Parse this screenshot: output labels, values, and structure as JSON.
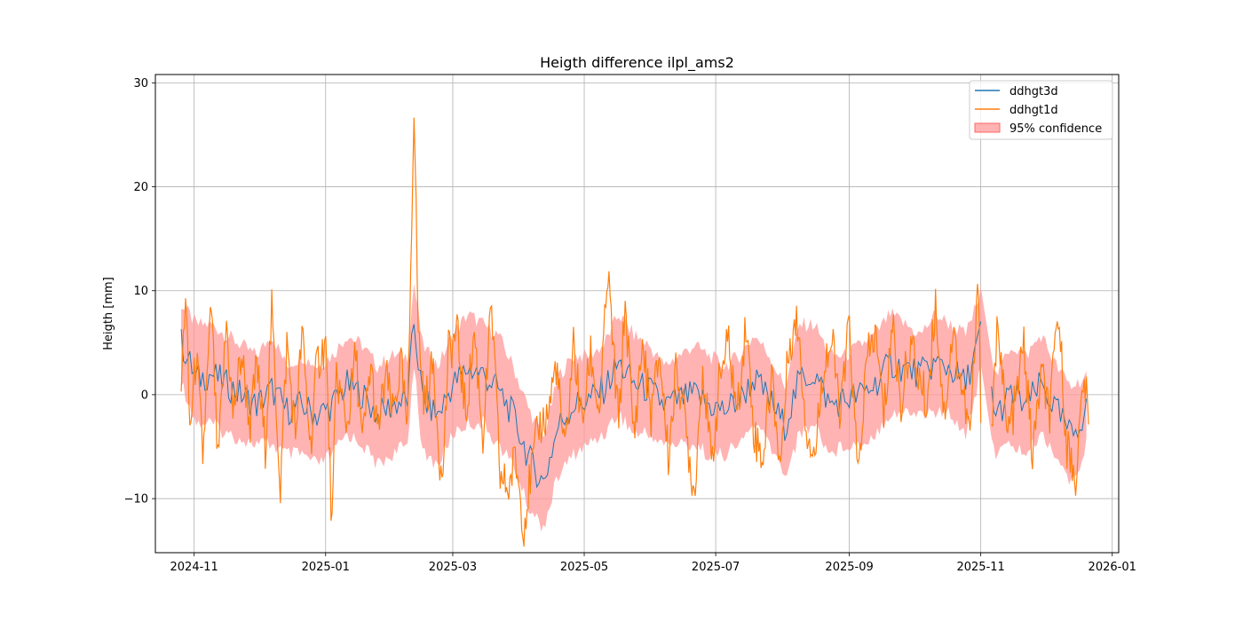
{
  "chart_data": {
    "type": "line",
    "title": "Heigth difference ilpl_ams2",
    "xlabel": "",
    "ylabel": "Heigth [mm]",
    "x_range": [
      "2024-10-14",
      "2026-01-04"
    ],
    "ylim": [
      -15.2,
      30.8
    ],
    "grid": true,
    "legend_position": "top-right",
    "x_ticks": [
      "2024-11",
      "2025-01",
      "2025-03",
      "2025-05",
      "2025-07",
      "2025-09",
      "2025-11",
      "2026-01"
    ],
    "y_ticks": [
      -10,
      0,
      10,
      20,
      30
    ],
    "colors": {
      "ddhgt3d": "#1f77b4",
      "ddhgt1d": "#ff7f0e",
      "confidence": "#ff9999"
    },
    "series": [
      {
        "name": "ddhgt3d",
        "x": [
          "2024-10-26",
          "2024-11-02",
          "2024-11-09",
          "2024-11-16",
          "2024-11-23",
          "2024-11-30",
          "2024-12-07",
          "2024-12-14",
          "2024-12-21",
          "2024-12-28",
          "2025-01-04",
          "2025-01-11",
          "2025-01-18",
          "2025-01-25",
          "2025-02-01",
          "2025-02-08",
          "2025-02-11",
          "2025-02-15",
          "2025-02-22",
          "2025-03-01",
          "2025-03-08",
          "2025-03-15",
          "2025-03-22",
          "2025-03-29",
          "2025-04-05",
          "2025-04-12",
          "2025-04-19",
          "2025-04-26",
          "2025-05-03",
          "2025-05-10",
          "2025-05-17",
          "2025-05-24",
          "2025-05-31",
          "2025-06-07",
          "2025-06-14",
          "2025-06-21",
          "2025-06-28",
          "2025-07-05",
          "2025-07-12",
          "2025-07-19",
          "2025-07-26",
          "2025-08-02",
          "2025-08-09",
          "2025-08-16",
          "2025-08-23",
          "2025-08-30",
          "2025-09-06",
          "2025-09-13",
          "2025-09-20",
          "2025-09-27",
          "2025-10-04",
          "2025-10-11",
          "2025-10-18",
          "2025-10-25",
          "2025-11-01",
          "2025-11-08",
          "2025-11-15",
          "2025-11-22",
          "2025-11-29",
          "2025-12-06",
          "2025-12-13",
          "2025-12-20"
        ],
        "y": [
          5,
          1.5,
          2,
          1,
          0,
          -1,
          0.5,
          -1.5,
          -1,
          -2,
          -1,
          1,
          0,
          -2,
          -1,
          -0.5,
          7,
          -0.5,
          -2,
          1,
          2.5,
          2,
          0.5,
          -2,
          -6,
          -8.5,
          -3,
          -1,
          -0.5,
          0.5,
          3,
          1,
          0.5,
          -1,
          -0.5,
          0,
          -1,
          -1.5,
          -0.5,
          1.5,
          -0.5,
          -3,
          1.5,
          2,
          -1,
          -0.5,
          0,
          1,
          3,
          2.5,
          2,
          3,
          2.5,
          1,
          6,
          -2,
          0,
          -1,
          1,
          -1.5,
          -4,
          -1.5
        ]
      },
      {
        "name": "ddhgt1d",
        "x": [
          "2024-10-26",
          "2024-10-28",
          "2024-10-30",
          "2024-11-02",
          "2024-11-05",
          "2024-11-09",
          "2024-11-12",
          "2024-11-16",
          "2024-11-19",
          "2024-11-23",
          "2024-11-27",
          "2024-11-30",
          "2024-12-04",
          "2024-12-07",
          "2024-12-11",
          "2024-12-14",
          "2024-12-18",
          "2024-12-21",
          "2024-12-25",
          "2024-12-28",
          "2025-01-01",
          "2025-01-04",
          "2025-01-06",
          "2025-01-11",
          "2025-01-15",
          "2025-01-18",
          "2025-01-22",
          "2025-01-25",
          "2025-01-29",
          "2025-02-01",
          "2025-02-05",
          "2025-02-08",
          "2025-02-11",
          "2025-02-13",
          "2025-02-16",
          "2025-02-20",
          "2025-02-24",
          "2025-02-27",
          "2025-03-03",
          "2025-03-07",
          "2025-03-11",
          "2025-03-15",
          "2025-03-19",
          "2025-03-23",
          "2025-03-27",
          "2025-03-30",
          "2025-04-03",
          "2025-04-06",
          "2025-04-10",
          "2025-04-14",
          "2025-04-18",
          "2025-04-22",
          "2025-04-26",
          "2025-04-30",
          "2025-05-04",
          "2025-05-08",
          "2025-05-12",
          "2025-05-17",
          "2025-05-20",
          "2025-05-24",
          "2025-05-28",
          "2025-06-01",
          "2025-06-05",
          "2025-06-09",
          "2025-06-13",
          "2025-06-17",
          "2025-06-21",
          "2025-06-25",
          "2025-06-29",
          "2025-07-03",
          "2025-07-07",
          "2025-07-11",
          "2025-07-15",
          "2025-07-19",
          "2025-07-23",
          "2025-07-27",
          "2025-07-31",
          "2025-08-04",
          "2025-08-08",
          "2025-08-12",
          "2025-08-16",
          "2025-08-20",
          "2025-08-24",
          "2025-08-28",
          "2025-09-01",
          "2025-09-05",
          "2025-09-09",
          "2025-09-13",
          "2025-09-17",
          "2025-09-21",
          "2025-09-25",
          "2025-09-29",
          "2025-10-03",
          "2025-10-07",
          "2025-10-11",
          "2025-10-15",
          "2025-10-19",
          "2025-10-23",
          "2025-10-27",
          "2025-10-31",
          "2025-11-01",
          "2025-11-06",
          "2025-11-09",
          "2025-11-13",
          "2025-11-17",
          "2025-11-21",
          "2025-11-25",
          "2025-11-29",
          "2025-12-03",
          "2025-12-07",
          "2025-12-11",
          "2025-12-15",
          "2025-12-19",
          "2025-12-21"
        ],
        "y": [
          0.5,
          10,
          -3.5,
          4,
          -6,
          8.5,
          -7,
          7,
          -2,
          4,
          -3,
          3,
          -5,
          8,
          -9,
          5,
          -4,
          6,
          -5,
          3,
          5,
          -13,
          2,
          -3,
          4,
          -5,
          3,
          -4,
          2,
          -2,
          3,
          -4,
          28.5,
          6,
          -1,
          3,
          -9,
          4,
          6,
          -2,
          6,
          -4,
          8.5,
          -8,
          -9,
          -6,
          -12.5,
          -8,
          -3,
          -2,
          3,
          -6,
          5,
          -3,
          4,
          -2,
          11.5,
          -3,
          9,
          -4,
          5,
          -2,
          4,
          -6,
          3,
          -3,
          -9.5,
          3,
          -7,
          2,
          5,
          -2,
          7,
          -4,
          -6,
          2,
          -7,
          5,
          7,
          -3,
          -6,
          3,
          5,
          -2,
          7,
          -8,
          3,
          6,
          -2,
          7,
          -1,
          5,
          2,
          -1,
          9,
          -2,
          6,
          1,
          -4,
          11,
          -0.5,
          -5,
          8,
          -4,
          -1,
          5,
          -6,
          2,
          -2,
          8,
          -5,
          -8,
          2,
          -3
        ]
      }
    ],
    "band": {
      "name": "95% confidence",
      "x": [
        "2024-10-26",
        "2024-11-02",
        "2024-11-09",
        "2024-11-16",
        "2024-11-23",
        "2024-11-30",
        "2024-12-07",
        "2024-12-14",
        "2024-12-21",
        "2024-12-28",
        "2025-01-04",
        "2025-01-11",
        "2025-01-18",
        "2025-01-25",
        "2025-02-01",
        "2025-02-08",
        "2025-02-11",
        "2025-02-15",
        "2025-02-22",
        "2025-03-01",
        "2025-03-08",
        "2025-03-15",
        "2025-03-22",
        "2025-03-29",
        "2025-04-05",
        "2025-04-12",
        "2025-04-19",
        "2025-04-26",
        "2025-05-03",
        "2025-05-10",
        "2025-05-17",
        "2025-05-24",
        "2025-05-31",
        "2025-06-07",
        "2025-06-14",
        "2025-06-21",
        "2025-06-28",
        "2025-07-05",
        "2025-07-12",
        "2025-07-19",
        "2025-07-26",
        "2025-08-02",
        "2025-08-09",
        "2025-08-16",
        "2025-08-23",
        "2025-08-30",
        "2025-09-06",
        "2025-09-13",
        "2025-09-20",
        "2025-09-27",
        "2025-10-04",
        "2025-10-11",
        "2025-10-18",
        "2025-10-25",
        "2025-11-01",
        "2025-11-08",
        "2025-11-15",
        "2025-11-22",
        "2025-11-29",
        "2025-12-06",
        "2025-12-13",
        "2025-12-20"
      ],
      "lower": [
        2,
        -2,
        -2,
        -3,
        -3.5,
        -4,
        -4,
        -5,
        -5,
        -6,
        -5,
        -3,
        -4,
        -6,
        -5,
        -4,
        4,
        -5,
        -6,
        -3,
        -2,
        -2,
        -4,
        -6,
        -10,
        -12,
        -7,
        -5,
        -4,
        -3,
        -1,
        -3,
        -3,
        -4,
        -4,
        -4,
        -5,
        -5,
        -4,
        -2,
        -4,
        -7,
        -3,
        -2,
        -5,
        -4,
        -4,
        -3,
        -1,
        -1,
        -1,
        -1,
        -1,
        -3,
        3,
        -5,
        -4,
        -5,
        -3,
        -5,
        -8,
        -4
      ],
      "upper": [
        8,
        6,
        6,
        5,
        4,
        3,
        5,
        2,
        3,
        2,
        3,
        5,
        4,
        2,
        3,
        3,
        10,
        4,
        2,
        5,
        7,
        6,
        5,
        2,
        -2,
        -5,
        1,
        3,
        3,
        4,
        7,
        5,
        4,
        2,
        3,
        4,
        3,
        2,
        3,
        5,
        3,
        0,
        6,
        6,
        3,
        3,
        4,
        5,
        7,
        6,
        5,
        7,
        6,
        5,
        9,
        1,
        4,
        3,
        5,
        2,
        0,
        1
      ]
    }
  }
}
